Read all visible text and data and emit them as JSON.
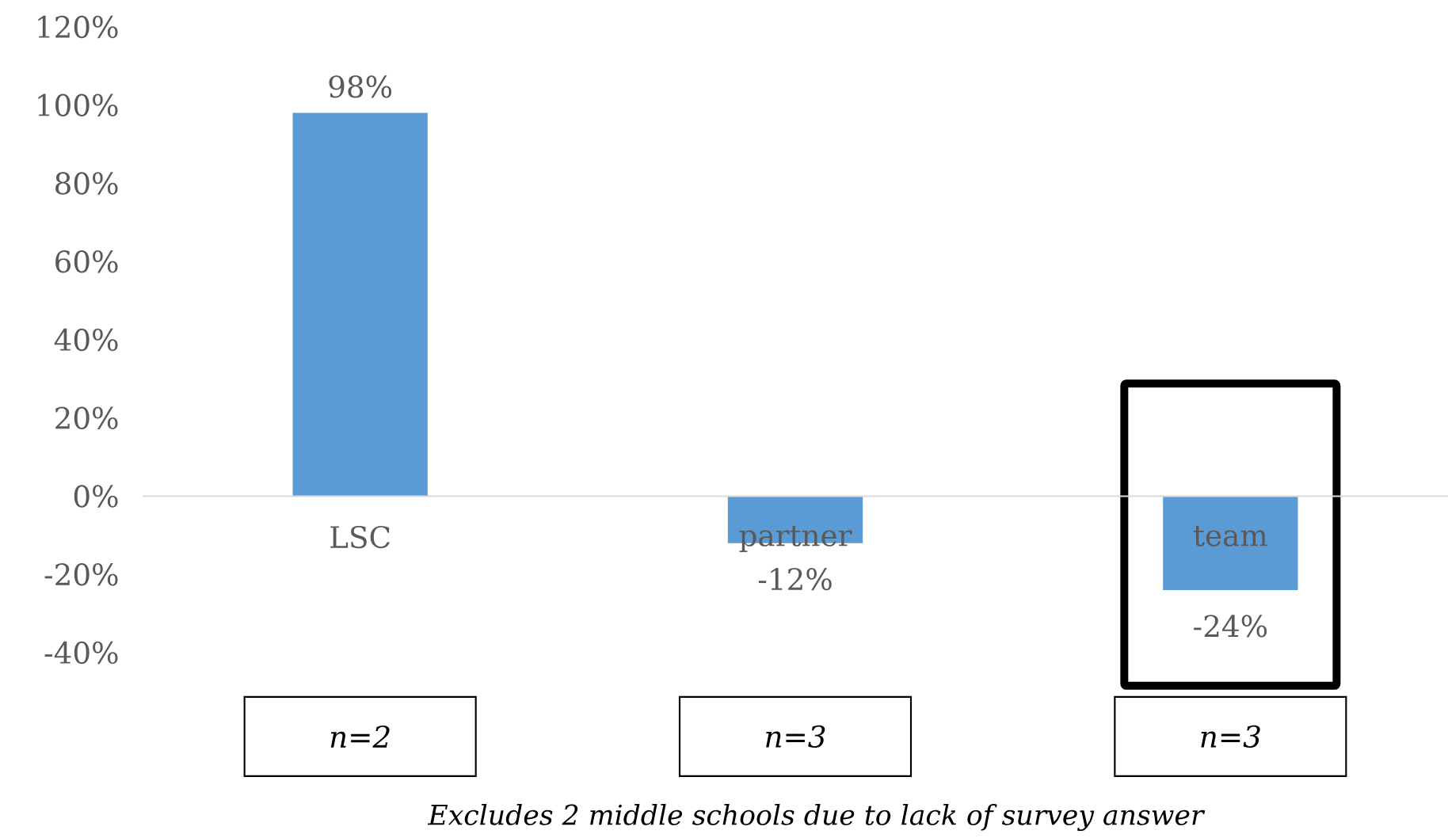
{
  "chart_data": {
    "type": "bar",
    "categories": [
      "LSC",
      "partner",
      "team"
    ],
    "values": [
      98,
      -12,
      -24
    ],
    "color": "#5b9bd5",
    "value_labels": [
      "98%",
      "-12%",
      "-24%"
    ],
    "ylim": [
      -40,
      120
    ],
    "yticks": [
      {
        "value": -40,
        "label": "-40%"
      },
      {
        "value": -20,
        "label": "-20%"
      },
      {
        "value": 0,
        "label": "0%"
      },
      {
        "value": 20,
        "label": "20%"
      },
      {
        "value": 40,
        "label": "40%"
      },
      {
        "value": 60,
        "label": "60%"
      },
      {
        "value": 80,
        "label": "80%"
      },
      {
        "value": 100,
        "label": "100%"
      },
      {
        "value": 120,
        "label": "120%"
      }
    ],
    "annotations": [
      "n=2",
      "n=3",
      "n=3",
      "Excludes 2 middle schools due to lack of survey answer"
    ]
  }
}
